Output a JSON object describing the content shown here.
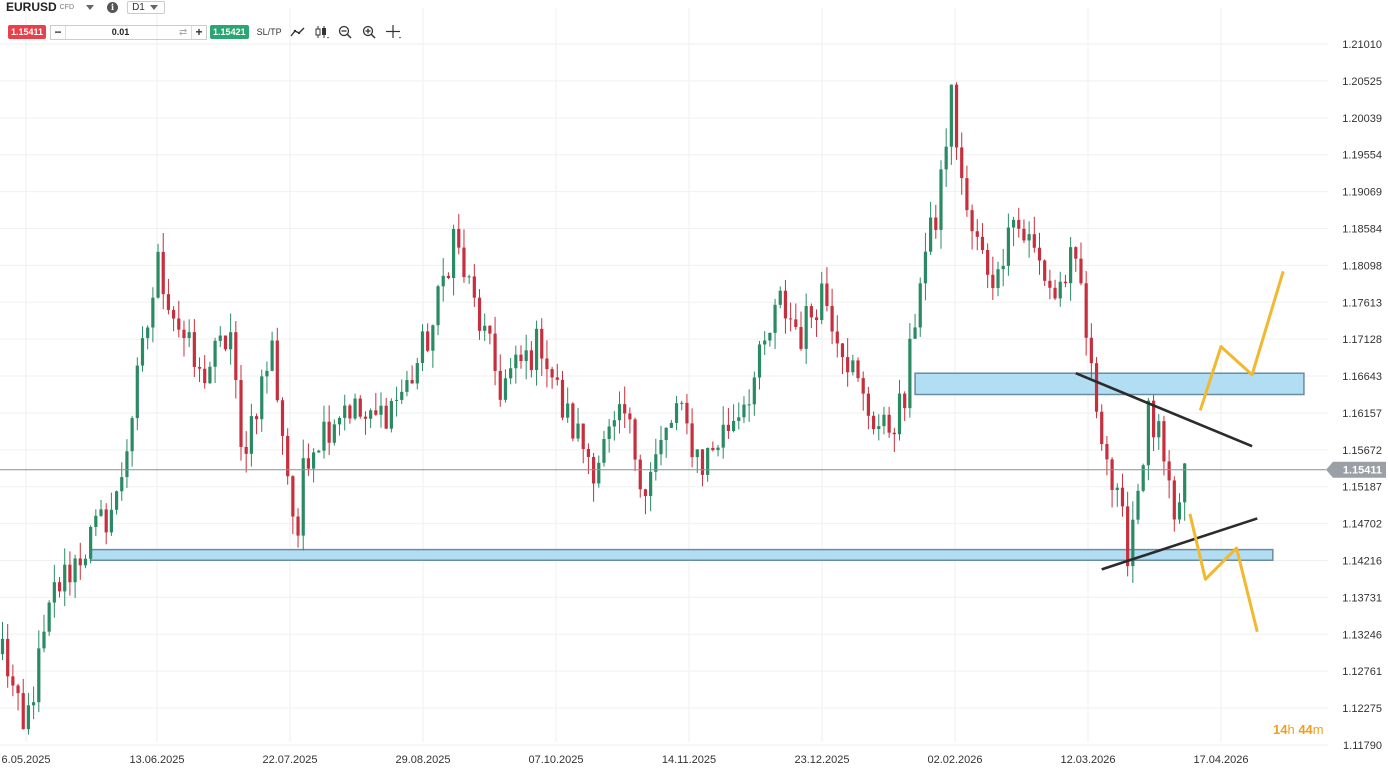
{
  "toolbar": {
    "symbol": "EURUSD",
    "instrument_type": "CFD",
    "timeframe": "D1",
    "sell_price": "1.15411",
    "quantity": "0.01",
    "buy_price": "1.15421",
    "sltp_label": "SL/TP",
    "icons": [
      "symbol-dropdown-icon",
      "info-icon",
      "timeframe-dropdown-icon",
      "swap-icon",
      "line-chart-type-icon",
      "candlestick-type-icon",
      "zoom-out-icon",
      "zoom-in-icon",
      "crosshair-icon"
    ]
  },
  "current_price_label": "1.15411",
  "timer": {
    "hours": "14",
    "h": "h",
    "minutes": "44",
    "m": "m"
  },
  "colors": {
    "bull": "#2a8a63",
    "bear": "#c62f3d",
    "zone_fill": "#a8daf2",
    "zone_stroke": "#6a8ca0",
    "forecast": "#f1b830",
    "trendline": "#2b2b2b",
    "price_label_bg": "#9aa0a6"
  },
  "chart_data": {
    "type": "candlestick",
    "symbol": "EURUSD",
    "timeframe": "D1",
    "y_ticks": [
      "1.21010",
      "1.20525",
      "1.20039",
      "1.19554",
      "1.19069",
      "1.18584",
      "1.18098",
      "1.17613",
      "1.17128",
      "1.16643",
      "1.16157",
      "1.15672",
      "1.15187",
      "1.14702",
      "1.14216",
      "1.13731",
      "1.13246",
      "1.12761",
      "1.12275",
      "1.11790"
    ],
    "ylim": [
      1.1179,
      1.2101
    ],
    "x_ticks": [
      "06.05.2025",
      "13.06.2025",
      "22.07.2025",
      "29.08.2025",
      "07.10.2025",
      "14.11.2025",
      "23.12.2025",
      "02.02.2026",
      "12.03.2026",
      "17.04.2026"
    ],
    "x_tick_first_display": "6.05.2025",
    "current_price": 1.15411,
    "anchors": [
      [
        0,
        1.131
      ],
      [
        4,
        1.119
      ],
      [
        10,
        1.138
      ],
      [
        22,
        1.15
      ],
      [
        30,
        1.181
      ],
      [
        33,
        1.175
      ],
      [
        38,
        1.166
      ],
      [
        44,
        1.172
      ],
      [
        46,
        1.156
      ],
      [
        52,
        1.17
      ],
      [
        57,
        1.143
      ],
      [
        58,
        1.156
      ],
      [
        66,
        1.163
      ],
      [
        71,
        1.16
      ],
      [
        78,
        1.165
      ],
      [
        83,
        1.173
      ],
      [
        87,
        1.185
      ],
      [
        89,
        1.18
      ],
      [
        96,
        1.165
      ],
      [
        104,
        1.171
      ],
      [
        108,
        1.162
      ],
      [
        114,
        1.155
      ],
      [
        120,
        1.161
      ],
      [
        124,
        1.152
      ],
      [
        130,
        1.162
      ],
      [
        135,
        1.155
      ],
      [
        140,
        1.16
      ],
      [
        145,
        1.166
      ],
      [
        150,
        1.176
      ],
      [
        154,
        1.172
      ],
      [
        158,
        1.178
      ],
      [
        162,
        1.171
      ],
      [
        166,
        1.163
      ],
      [
        170,
        1.159
      ],
      [
        174,
        1.163
      ],
      [
        177,
        1.18
      ],
      [
        180,
        1.187
      ],
      [
        183,
        1.203
      ],
      [
        186,
        1.187
      ],
      [
        189,
        1.182
      ],
      [
        192,
        1.179
      ],
      [
        194,
        1.188
      ],
      [
        198,
        1.184
      ],
      [
        203,
        1.177
      ],
      [
        206,
        1.181
      ],
      [
        208,
        1.178
      ],
      [
        210,
        1.166
      ],
      [
        212,
        1.16
      ],
      [
        214,
        1.152
      ],
      [
        217,
        1.144
      ],
      [
        219,
        1.152
      ],
      [
        221,
        1.161
      ],
      [
        223,
        1.158
      ],
      [
        226,
        1.146
      ],
      [
        228,
        1.154
      ]
    ],
    "x_index_range": [
      0,
      250
    ],
    "zones": [
      {
        "name": "resistance-zone",
        "from": 1.164,
        "to": 1.1668,
        "start_index": 176,
        "end_index": 251
      },
      {
        "name": "support-zone",
        "from": 1.1422,
        "to": 1.1436,
        "start_index": 17,
        "end_index": 245
      }
    ],
    "trendlines": [
      {
        "name": "descending-trendline",
        "points": [
          [
            207,
            1.1668
          ],
          [
            241,
            1.1572
          ]
        ]
      },
      {
        "name": "ascending-trendline",
        "points": [
          [
            212,
            1.141
          ],
          [
            242,
            1.1477
          ]
        ]
      }
    ],
    "forecasts": [
      {
        "name": "bullish-forecast-path",
        "points": [
          [
            231,
            1.1619
          ],
          [
            235,
            1.1703
          ],
          [
            241,
            1.1666
          ],
          [
            247,
            1.1802
          ]
        ]
      },
      {
        "name": "bearish-forecast-path",
        "points": [
          [
            229,
            1.1483
          ],
          [
            232,
            1.1397
          ],
          [
            238,
            1.1438
          ],
          [
            242,
            1.1328
          ]
        ]
      }
    ]
  }
}
